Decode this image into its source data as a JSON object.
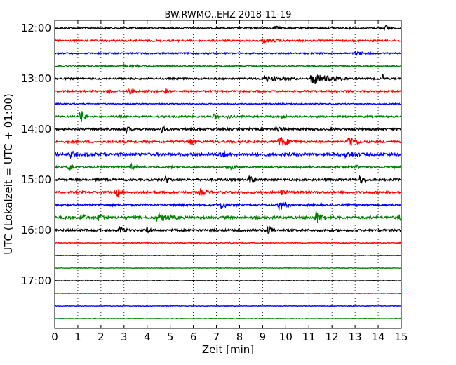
{
  "chart_data": {
    "type": "line",
    "title": "BW.RWMO..EHZ 2018-11-19",
    "xlabel": "Zeit  [min]",
    "ylabel": "UTC (Lokalzeit = UTC + 01:00)",
    "xlim": [
      0,
      15
    ],
    "x_ticks": [
      "0",
      "1",
      "2",
      "3",
      "4",
      "5",
      "6",
      "7",
      "8",
      "9",
      "10",
      "11",
      "12",
      "13",
      "14",
      "15"
    ],
    "y_ticks": [
      "12:00",
      "13:00",
      "14:00",
      "15:00",
      "16:00",
      "17:00"
    ],
    "grid": "vertical-dotted",
    "colors": [
      "#000000",
      "#ff0000",
      "#0000ff",
      "#008000"
    ],
    "traces": [
      {
        "start": "12:00",
        "color": "#000000",
        "noise": 0.12,
        "events": [
          {
            "t": 9.5,
            "amp": 0.3,
            "dur": 0.6
          },
          {
            "t": 14.3,
            "amp": 0.4,
            "dur": 0.3
          }
        ]
      },
      {
        "start": "12:15",
        "color": "#ff0000",
        "noise": 0.12,
        "events": [
          {
            "t": 9.0,
            "amp": 0.25,
            "dur": 0.8
          }
        ]
      },
      {
        "start": "12:30",
        "color": "#0000ff",
        "noise": 0.1,
        "events": [
          {
            "t": 13.0,
            "amp": 0.25,
            "dur": 0.8
          }
        ]
      },
      {
        "start": "12:45",
        "color": "#008000",
        "noise": 0.1,
        "events": [
          {
            "t": 3.0,
            "amp": 0.2,
            "dur": 1.0
          }
        ]
      },
      {
        "start": "13:00",
        "color": "#000000",
        "noise": 0.12,
        "events": [
          {
            "t": 9.0,
            "amp": 0.4,
            "dur": 1.5
          },
          {
            "t": 11.1,
            "amp": 0.8,
            "dur": 1.6
          },
          {
            "t": 14.2,
            "amp": 0.6,
            "dur": 0.2
          }
        ]
      },
      {
        "start": "13:15",
        "color": "#ff0000",
        "noise": 0.12,
        "events": [
          {
            "t": 2.3,
            "amp": 0.6,
            "dur": 0.3
          },
          {
            "t": 3.2,
            "amp": 0.4,
            "dur": 0.4
          },
          {
            "t": 4.8,
            "amp": 0.3,
            "dur": 0.2
          }
        ]
      },
      {
        "start": "13:30",
        "color": "#0000ff",
        "noise": 0.08,
        "events": []
      },
      {
        "start": "13:45",
        "color": "#008000",
        "noise": 0.12,
        "events": [
          {
            "t": 1.1,
            "amp": 1.2,
            "dur": 0.3
          },
          {
            "t": 6.9,
            "amp": 0.4,
            "dur": 0.2
          },
          {
            "t": 7.5,
            "amp": 0.5,
            "dur": 0.2
          },
          {
            "t": 9.8,
            "amp": 0.3,
            "dur": 0.3
          }
        ]
      },
      {
        "start": "14:00",
        "color": "#000000",
        "noise": 0.15,
        "events": [
          {
            "t": 3.1,
            "amp": 0.4,
            "dur": 0.3
          },
          {
            "t": 4.6,
            "amp": 0.5,
            "dur": 0.3
          },
          {
            "t": 9.6,
            "amp": 0.5,
            "dur": 0.4
          }
        ]
      },
      {
        "start": "14:15",
        "color": "#ff0000",
        "noise": 0.15,
        "events": [
          {
            "t": 5.8,
            "amp": 0.5,
            "dur": 0.4
          },
          {
            "t": 9.7,
            "amp": 0.8,
            "dur": 0.8
          },
          {
            "t": 12.7,
            "amp": 1.0,
            "dur": 0.6
          }
        ]
      },
      {
        "start": "14:30",
        "color": "#0000ff",
        "noise": 0.2,
        "events": [
          {
            "t": 0.7,
            "amp": 0.5,
            "dur": 0.3
          },
          {
            "t": 7.2,
            "amp": 0.6,
            "dur": 0.3
          },
          {
            "t": 12.6,
            "amp": 0.5,
            "dur": 0.6
          }
        ]
      },
      {
        "start": "14:45",
        "color": "#008000",
        "noise": 0.15,
        "events": [
          {
            "t": 0.6,
            "amp": 0.5,
            "dur": 0.3
          },
          {
            "t": 3.3,
            "amp": 0.4,
            "dur": 0.3
          },
          {
            "t": 7.5,
            "amp": 0.4,
            "dur": 0.4
          },
          {
            "t": 13.0,
            "amp": 0.4,
            "dur": 0.2
          }
        ]
      },
      {
        "start": "15:00",
        "color": "#000000",
        "noise": 0.15,
        "events": [
          {
            "t": 4.8,
            "amp": 0.5,
            "dur": 0.3
          },
          {
            "t": 8.4,
            "amp": 0.5,
            "dur": 0.4
          },
          {
            "t": 13.2,
            "amp": 0.5,
            "dur": 0.4
          }
        ]
      },
      {
        "start": "15:15",
        "color": "#ff0000",
        "noise": 0.15,
        "events": [
          {
            "t": 2.7,
            "amp": 0.6,
            "dur": 0.3
          },
          {
            "t": 6.3,
            "amp": 0.5,
            "dur": 0.5
          },
          {
            "t": 9.8,
            "amp": 0.4,
            "dur": 0.4
          }
        ]
      },
      {
        "start": "15:30",
        "color": "#0000ff",
        "noise": 0.15,
        "events": [
          {
            "t": 7.2,
            "amp": 0.6,
            "dur": 0.4
          },
          {
            "t": 9.7,
            "amp": 0.9,
            "dur": 0.5
          }
        ]
      },
      {
        "start": "15:45",
        "color": "#008000",
        "noise": 0.18,
        "events": [
          {
            "t": 1.1,
            "amp": 0.6,
            "dur": 0.4
          },
          {
            "t": 1.9,
            "amp": 0.6,
            "dur": 0.4
          },
          {
            "t": 4.4,
            "amp": 0.5,
            "dur": 1.0
          },
          {
            "t": 11.3,
            "amp": 1.0,
            "dur": 0.5
          },
          {
            "t": 14.9,
            "amp": 0.9,
            "dur": 0.2
          }
        ]
      },
      {
        "start": "16:00",
        "color": "#000000",
        "noise": 0.15,
        "events": [
          {
            "t": 2.8,
            "amp": 0.6,
            "dur": 0.4
          },
          {
            "t": 4.0,
            "amp": 0.5,
            "dur": 0.3
          },
          {
            "t": 9.2,
            "amp": 0.7,
            "dur": 0.4
          }
        ]
      },
      {
        "start": "16:15",
        "color": "#ff0000",
        "noise": 0.05,
        "events": [
          {
            "t": 7.6,
            "amp": 0.2,
            "dur": 0.2
          }
        ]
      },
      {
        "start": "16:30",
        "color": "#0000ff",
        "noise": 0.04,
        "events": []
      },
      {
        "start": "16:45",
        "color": "#008000",
        "noise": 0.04,
        "events": []
      },
      {
        "start": "17:00",
        "color": "#000000",
        "noise": 0.04,
        "events": []
      },
      {
        "start": "17:15",
        "color": "#ff0000",
        "noise": 0.04,
        "events": []
      },
      {
        "start": "17:30",
        "color": "#0000ff",
        "noise": 0.04,
        "events": [
          {
            "t": 12.8,
            "amp": 0.2,
            "dur": 0.1
          }
        ]
      },
      {
        "start": "17:45",
        "color": "#008000",
        "noise": 0.04,
        "events": []
      }
    ]
  }
}
